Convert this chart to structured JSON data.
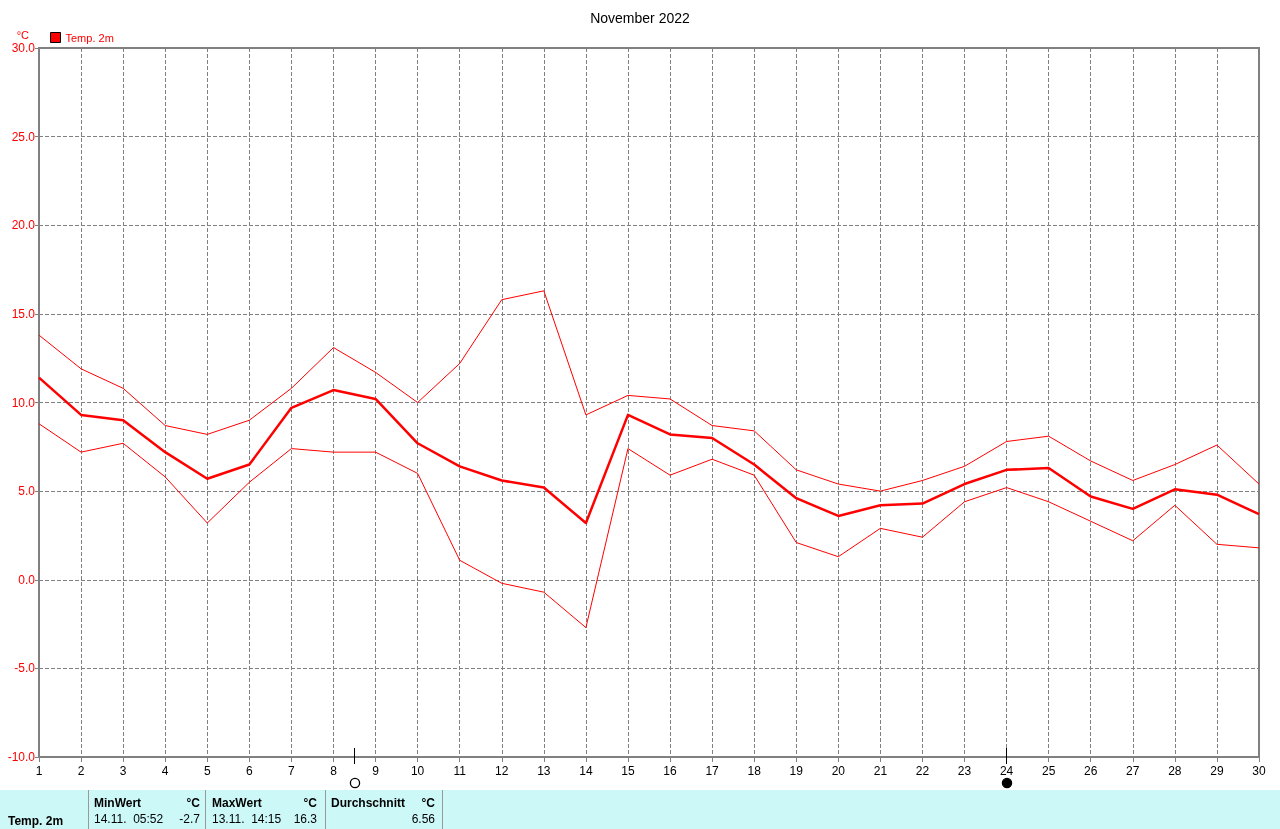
{
  "chart_data": {
    "type": "line",
    "title": "November 2022",
    "ylabel": "°C",
    "x": [
      1,
      2,
      3,
      4,
      5,
      6,
      7,
      8,
      9,
      10,
      11,
      12,
      13,
      14,
      15,
      16,
      17,
      18,
      19,
      20,
      21,
      22,
      23,
      24,
      25,
      26,
      27,
      28,
      29,
      30
    ],
    "series": [
      {
        "name": "Temp. 2m",
        "color": "#ff0000",
        "values": [
          11.4,
          9.3,
          9.0,
          7.2,
          5.7,
          6.5,
          9.7,
          10.7,
          10.2,
          7.7,
          6.4,
          5.6,
          5.2,
          3.2,
          9.3,
          8.2,
          8.0,
          6.5,
          4.6,
          3.6,
          4.2,
          4.3,
          5.4,
          6.2,
          6.3,
          4.7,
          4.0,
          5.1,
          4.8,
          3.7
        ]
      },
      {
        "color": "#ff0000",
        "values": [
          8.8,
          7.2,
          7.7,
          5.8,
          3.2,
          5.5,
          7.4,
          7.2,
          7.2,
          6.0,
          1.1,
          -0.2,
          -0.7,
          -2.7,
          7.4,
          5.9,
          6.8,
          5.9,
          2.1,
          1.3,
          2.9,
          2.4,
          4.4,
          5.2,
          4.4,
          3.3,
          2.2,
          4.2,
          2.0,
          1.8
        ]
      },
      {
        "color": "#ff0000",
        "values": [
          13.8,
          11.9,
          10.8,
          8.7,
          8.2,
          9.0,
          10.8,
          13.1,
          11.7,
          10.0,
          12.2,
          15.8,
          16.3,
          9.3,
          10.4,
          10.2,
          8.7,
          8.4,
          6.2,
          5.4,
          5.0,
          5.6,
          6.4,
          7.8,
          8.1,
          6.7,
          5.6,
          6.5,
          7.6,
          5.4
        ]
      }
    ],
    "xlim": [
      1,
      30
    ],
    "xticks": [
      1,
      2,
      3,
      4,
      5,
      6,
      7,
      8,
      9,
      10,
      11,
      12,
      13,
      14,
      15,
      16,
      17,
      18,
      19,
      20,
      21,
      22,
      23,
      24,
      25,
      26,
      27,
      28,
      29,
      30
    ],
    "ylim": [
      -10,
      30
    ],
    "yticks": [
      {
        "value": -10,
        "label": "-10.0"
      },
      {
        "value": -5,
        "label": "-5.0"
      },
      {
        "value": 0,
        "label": "0.0"
      },
      {
        "value": 5,
        "label": "5.0"
      },
      {
        "value": 10,
        "label": "10.0"
      },
      {
        "value": 15,
        "label": "15.0"
      },
      {
        "value": 20,
        "label": "20.0"
      },
      {
        "value": 25,
        "label": "25.0"
      },
      {
        "value": 30,
        "label": "30.0"
      }
    ],
    "grid": true,
    "legend": "top left",
    "marker": "none",
    "line_style": "solid",
    "annotations": [
      "Temp. 2m",
      "MinWert",
      "°C",
      "14.11.  05:52",
      "-2.7",
      "MaxWert",
      "°C",
      "13.11.  14:15",
      "16.3",
      "Durchschnitt",
      "°C",
      "6.56"
    ]
  }
}
